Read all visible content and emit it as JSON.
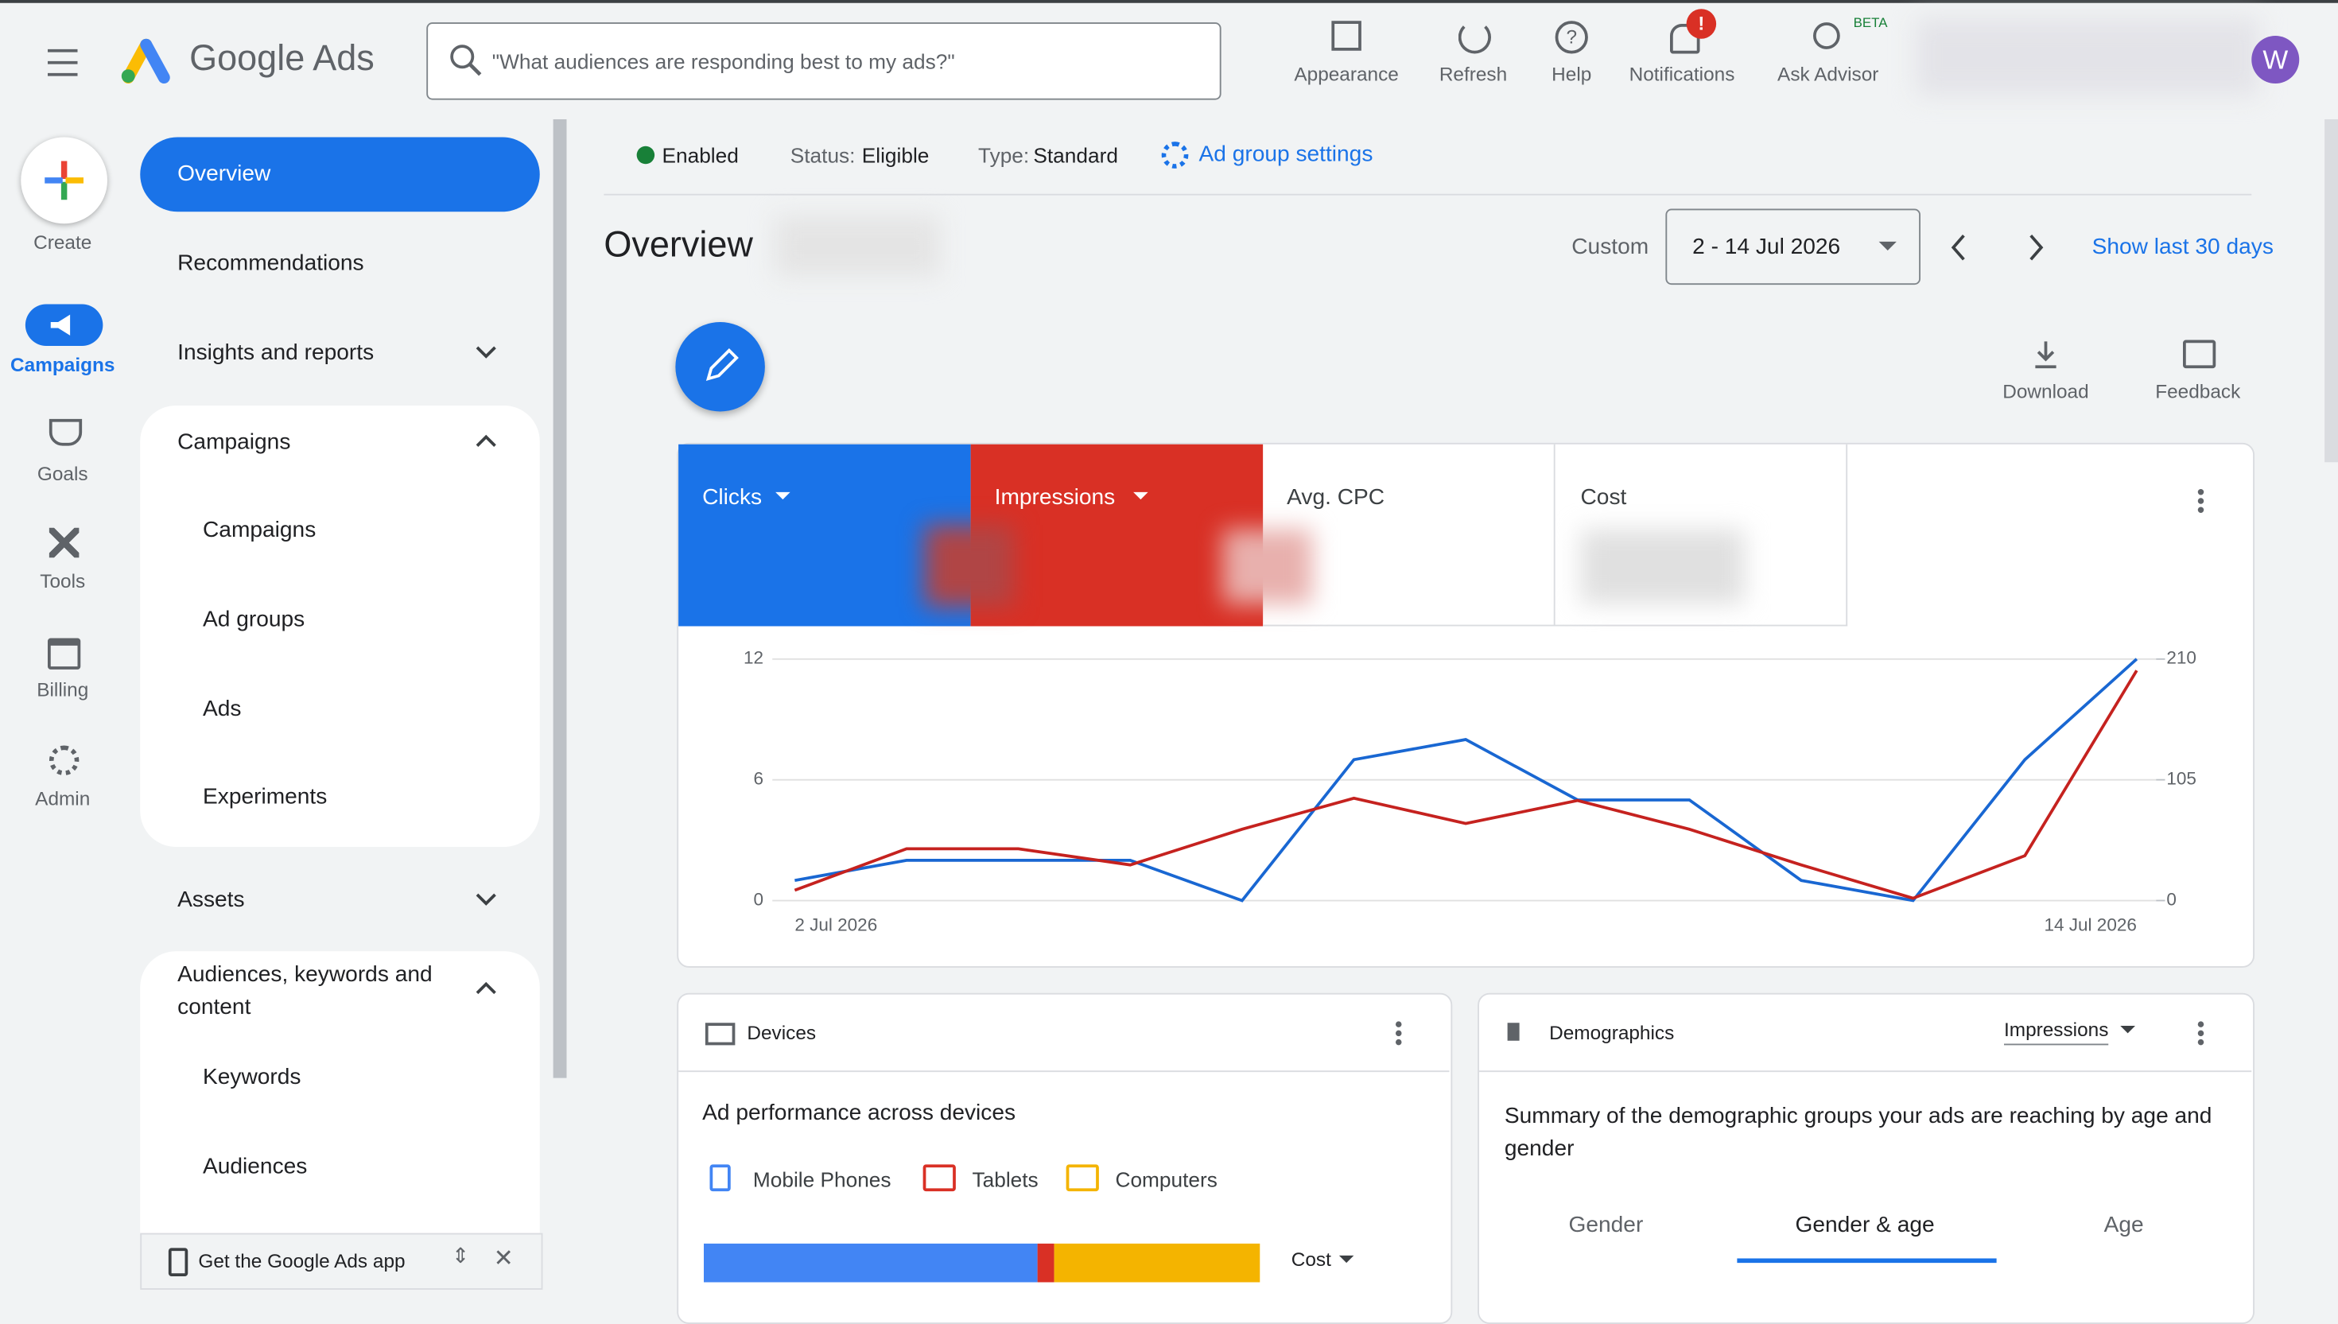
{
  "header": {
    "product": "Google Ads",
    "search_placeholder": "\"What audiences are responding best to my ads?\"",
    "tools": [
      "Appearance",
      "Refresh",
      "Help",
      "Notifications",
      "Ask Advisor"
    ],
    "beta": "BETA",
    "notification_badge": "!",
    "avatar": "W"
  },
  "rail": {
    "create": "Create",
    "items": [
      "Campaigns",
      "Goals",
      "Tools",
      "Billing",
      "Admin"
    ]
  },
  "nav": {
    "items": [
      "Overview",
      "Recommendations",
      "Insights and reports",
      "Campaigns",
      "Campaigns",
      "Ad groups",
      "Ads",
      "Experiments",
      "Assets",
      "Audiences, keywords and content",
      "Keywords",
      "Audiences"
    ],
    "app_banner": "Get the Google Ads app"
  },
  "status": {
    "enabled": "Enabled",
    "status_label": "Status:",
    "status_value": "Eligible",
    "type_label": "Type:",
    "type_value": "Standard",
    "settings": "Ad group settings"
  },
  "overview": {
    "title": "Overview",
    "range_label": "Custom",
    "range": "2 - 14 Jul 2026",
    "show_last": "Show last 30 days",
    "download": "Download",
    "feedback": "Feedback"
  },
  "metrics": [
    "Clicks",
    "Impressions",
    "Avg. CPC",
    "Cost"
  ],
  "chart_data": {
    "type": "line",
    "categories": [
      "2 Jul 2026",
      null,
      null,
      null,
      null,
      null,
      null,
      null,
      null,
      null,
      null,
      null,
      "14 Jul 2026"
    ],
    "series": [
      {
        "name": "Clicks",
        "color": "#1967d2",
        "values": [
          1,
          2,
          2,
          2,
          0,
          7,
          8,
          5,
          5,
          1,
          0,
          7,
          12
        ]
      },
      {
        "name": "Impressions",
        "color": "#c5221f",
        "axis": "y2",
        "values": [
          9,
          45,
          45,
          31,
          62,
          89,
          67,
          87,
          62,
          31,
          2,
          39,
          200
        ]
      }
    ],
    "ylim": [
      0,
      12
    ],
    "yticks": [
      0,
      6,
      12
    ],
    "y2lim": [
      0,
      210
    ],
    "y2ticks": [
      0,
      105,
      210
    ],
    "grid": true
  },
  "devices": {
    "title": "Devices",
    "subtitle": "Ad performance across devices",
    "legend": [
      "Mobile Phones",
      "Tablets",
      "Computers"
    ],
    "metric": "Cost",
    "shares": [
      60,
      3,
      37
    ],
    "colors": [
      "#4285f4",
      "#d93025",
      "#f4b400"
    ]
  },
  "demographics": {
    "title": "Demographics",
    "metric": "Impressions",
    "subtitle": "Summary of the demographic groups your ads are reaching by age and gender",
    "tabs": [
      "Gender",
      "Gender & age",
      "Age"
    ]
  }
}
